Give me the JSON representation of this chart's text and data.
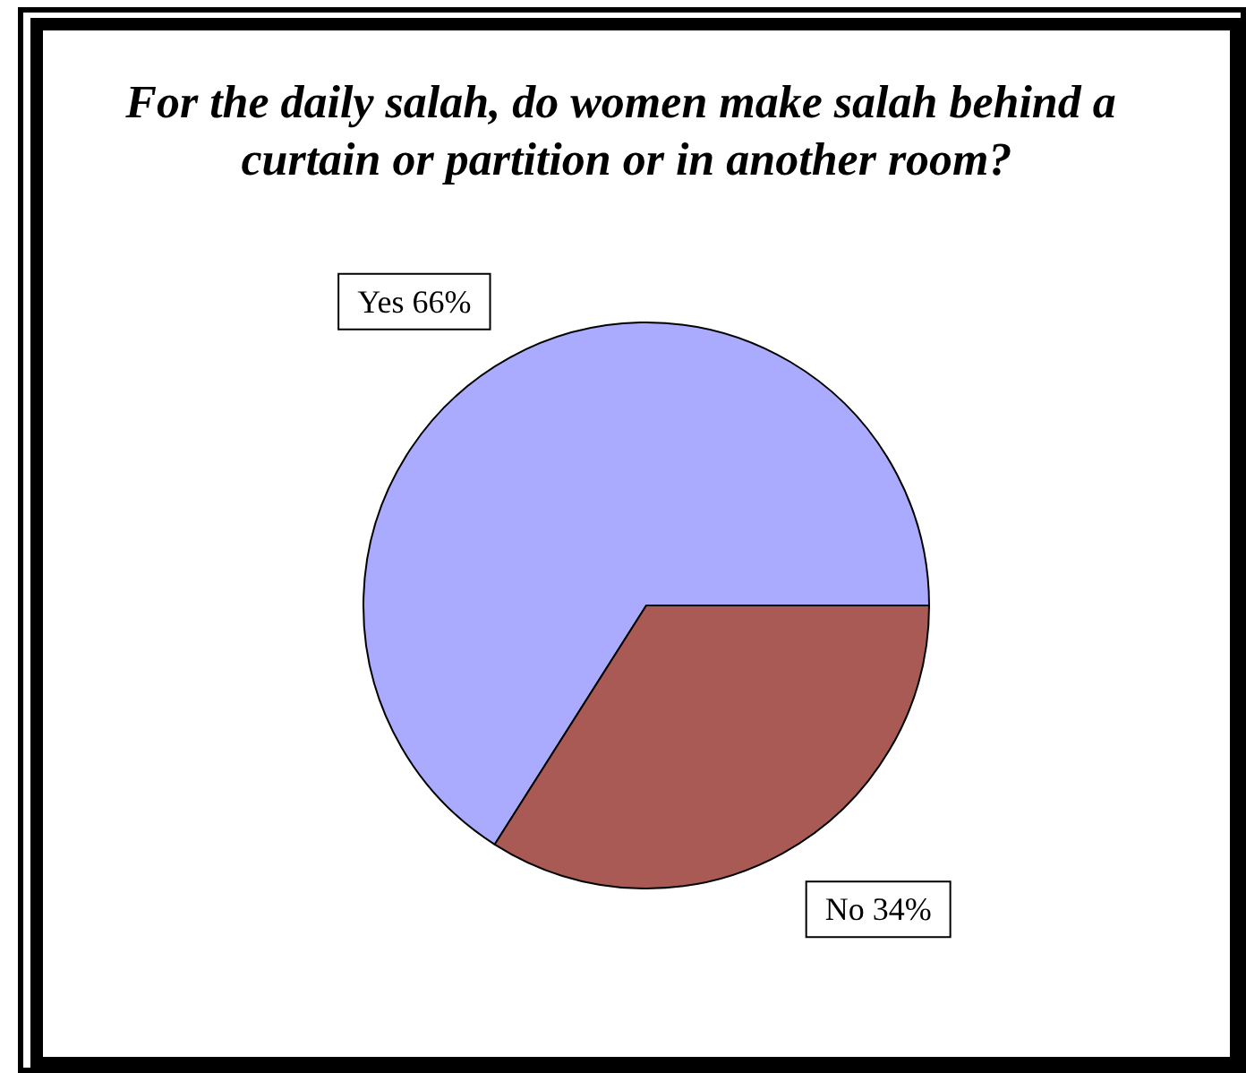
{
  "chart_data": {
    "type": "pie",
    "title": "For the daily salah, do women make salah behind a curtain or partition or in another room?",
    "categories": [
      "Yes",
      "No"
    ],
    "values": [
      66,
      34
    ],
    "colors": [
      "#aaaaff",
      "#a95a55"
    ],
    "value_labels": [
      "66%",
      "34%"
    ]
  }
}
